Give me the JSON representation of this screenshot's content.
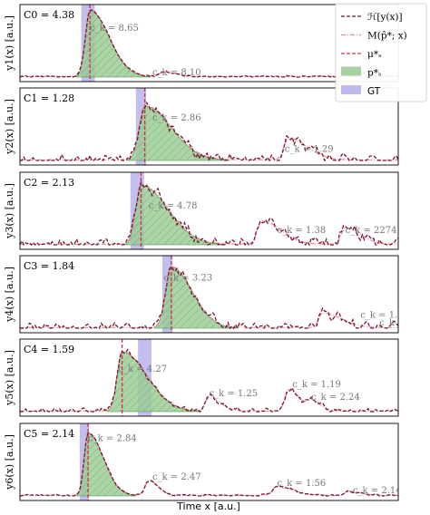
{
  "chart_data": {
    "type": "line",
    "xlabel": "Time x [a.u.]",
    "xlim": [
      0,
      100
    ],
    "legend": {
      "placement": "top-right",
      "entries": [
        {
          "label": "ℋ[y(x)]",
          "style": "dashed",
          "color": "#7a1530"
        },
        {
          "label": "M(p̂*; x)",
          "style": "dashdot",
          "color": "#e98b96"
        },
        {
          "label": "μ*ₛ",
          "style": "dashed",
          "color": "#d6304a"
        },
        {
          "label": "p*ₛ",
          "style": "patch",
          "color": "#9ccc98"
        },
        {
          "label": "GT",
          "style": "patch",
          "color": "#b7b3ea"
        }
      ]
    },
    "colors": {
      "envelope": "#7a1530",
      "model": "#e98b96",
      "mu": "#d6304a",
      "posterior_fill": "#9ccc98",
      "posterior_edge": "#3f8f3f",
      "gt": "#b7b3ea",
      "annotation": "#777777"
    },
    "panels": [
      {
        "ylabel": "y1(x) [a.u.]",
        "C_label": "C0 = 4.38",
        "gt": 18,
        "gt_width": 1.2,
        "mu": 18.5,
        "peaks": [
          {
            "c": 18.5,
            "a": 1.0,
            "s": 1.2,
            "w": 5.0
          },
          {
            "c": 38,
            "a": 0.07,
            "s": 1.0,
            "w": 3.0
          }
        ],
        "noise": 0.01,
        "annotations": [
          {
            "x": 18.5,
            "y": 0.7,
            "text": "c_k = 8.65"
          },
          {
            "x": 35,
            "y": 0.03,
            "text": "c_k = 8.10"
          }
        ]
      },
      {
        "ylabel": "y2(x) [a.u.]",
        "C_label": "C1 = 1.28",
        "gt": 32,
        "gt_width": 0.9,
        "mu": 33,
        "peaks": [
          {
            "c": 33,
            "a": 0.82,
            "s": 1.5,
            "w": 7.0
          },
          {
            "c": 71,
            "a": 0.32,
            "s": 1.2,
            "w": 5.0
          }
        ],
        "noise": 0.06,
        "annotations": [
          {
            "x": 35,
            "y": 0.6,
            "text": "c_k = 2.86"
          },
          {
            "x": 70,
            "y": 0.13,
            "text": "c_k = 1.29"
          }
        ]
      },
      {
        "ylabel": "y3(x) [a.u.]",
        "C_label": "C2 = 2.13",
        "gt": 31,
        "gt_width": 1.2,
        "mu": 32,
        "peaks": [
          {
            "c": 32,
            "a": 0.9,
            "s": 1.4,
            "w": 7.0
          },
          {
            "c": 64,
            "a": 0.35,
            "s": 1.2,
            "w": 5.0
          },
          {
            "c": 86,
            "a": 0.25,
            "s": 1.0,
            "w": 4.0
          }
        ],
        "noise": 0.06,
        "annotations": [
          {
            "x": 34,
            "y": 0.55,
            "text": "c_k = 4.78"
          },
          {
            "x": 68,
            "y": 0.18,
            "text": "c_k = 1.38"
          },
          {
            "x": 86,
            "y": 0.18,
            "text": "c_k = 2274.9"
          }
        ]
      },
      {
        "ylabel": "y4(x) [a.u.]",
        "C_label": "C3 = 1.84",
        "gt": 39,
        "gt_width": 0.9,
        "mu": 40,
        "peaks": [
          {
            "c": 40,
            "a": 0.92,
            "s": 1.5,
            "w": 5.5
          },
          {
            "c": 80,
            "a": 0.22,
            "s": 1.0,
            "w": 5.0
          }
        ],
        "noise": 0.05,
        "annotations": [
          {
            "x": 38,
            "y": 0.72,
            "text": "c_k = 3.23"
          },
          {
            "x": 90,
            "y": 0.16,
            "text": "c_k = 1.85"
          },
          {
            "x": 95,
            "y": 0.04,
            "text": "c_k = 1.04"
          }
        ]
      },
      {
        "ylabel": "y5(x) [a.u.]",
        "C_label": "C4 = 1.59",
        "gt": 33,
        "gt_width": 1.2,
        "mu": 27,
        "peaks": [
          {
            "c": 27,
            "a": 0.9,
            "s": 1.3,
            "w": 6.5
          },
          {
            "c": 50,
            "a": 0.2,
            "s": 1.0,
            "w": 3.0
          },
          {
            "c": 71,
            "a": 0.32,
            "s": 1.0,
            "w": 3.0
          },
          {
            "c": 77,
            "a": 0.14,
            "s": 1.0,
            "w": 2.5
          }
        ],
        "noise": 0.03,
        "annotations": [
          {
            "x": 26,
            "y": 0.6,
            "text": "c_k = 4.27"
          },
          {
            "x": 50,
            "y": 0.23,
            "text": "c_k = 1.25"
          },
          {
            "x": 72,
            "y": 0.37,
            "text": "c_k = 1.19"
          },
          {
            "x": 77,
            "y": 0.18,
            "text": "c_k = 2.24"
          }
        ]
      },
      {
        "ylabel": "y6(x) [a.u.]",
        "C_label": "C5 = 2.14",
        "gt": 17,
        "gt_width": 0.8,
        "mu": 18,
        "peaks": [
          {
            "c": 18,
            "a": 0.95,
            "s": 1.0,
            "w": 4.0
          },
          {
            "c": 34,
            "a": 0.22,
            "s": 1.0,
            "w": 2.5
          },
          {
            "c": 68,
            "a": 0.14,
            "s": 1.2,
            "w": 4.0
          },
          {
            "c": 87,
            "a": 0.06,
            "s": 1.0,
            "w": 3.0
          }
        ],
        "noise": 0.01,
        "annotations": [
          {
            "x": 18,
            "y": 0.83,
            "text": "c_k = 2.84"
          },
          {
            "x": 35,
            "y": 0.25,
            "text": "c_k = 2.47"
          },
          {
            "x": 68,
            "y": 0.15,
            "text": "c_k = 1.56"
          },
          {
            "x": 88,
            "y": 0.04,
            "text": "c_k = 2.14"
          }
        ]
      }
    ]
  }
}
